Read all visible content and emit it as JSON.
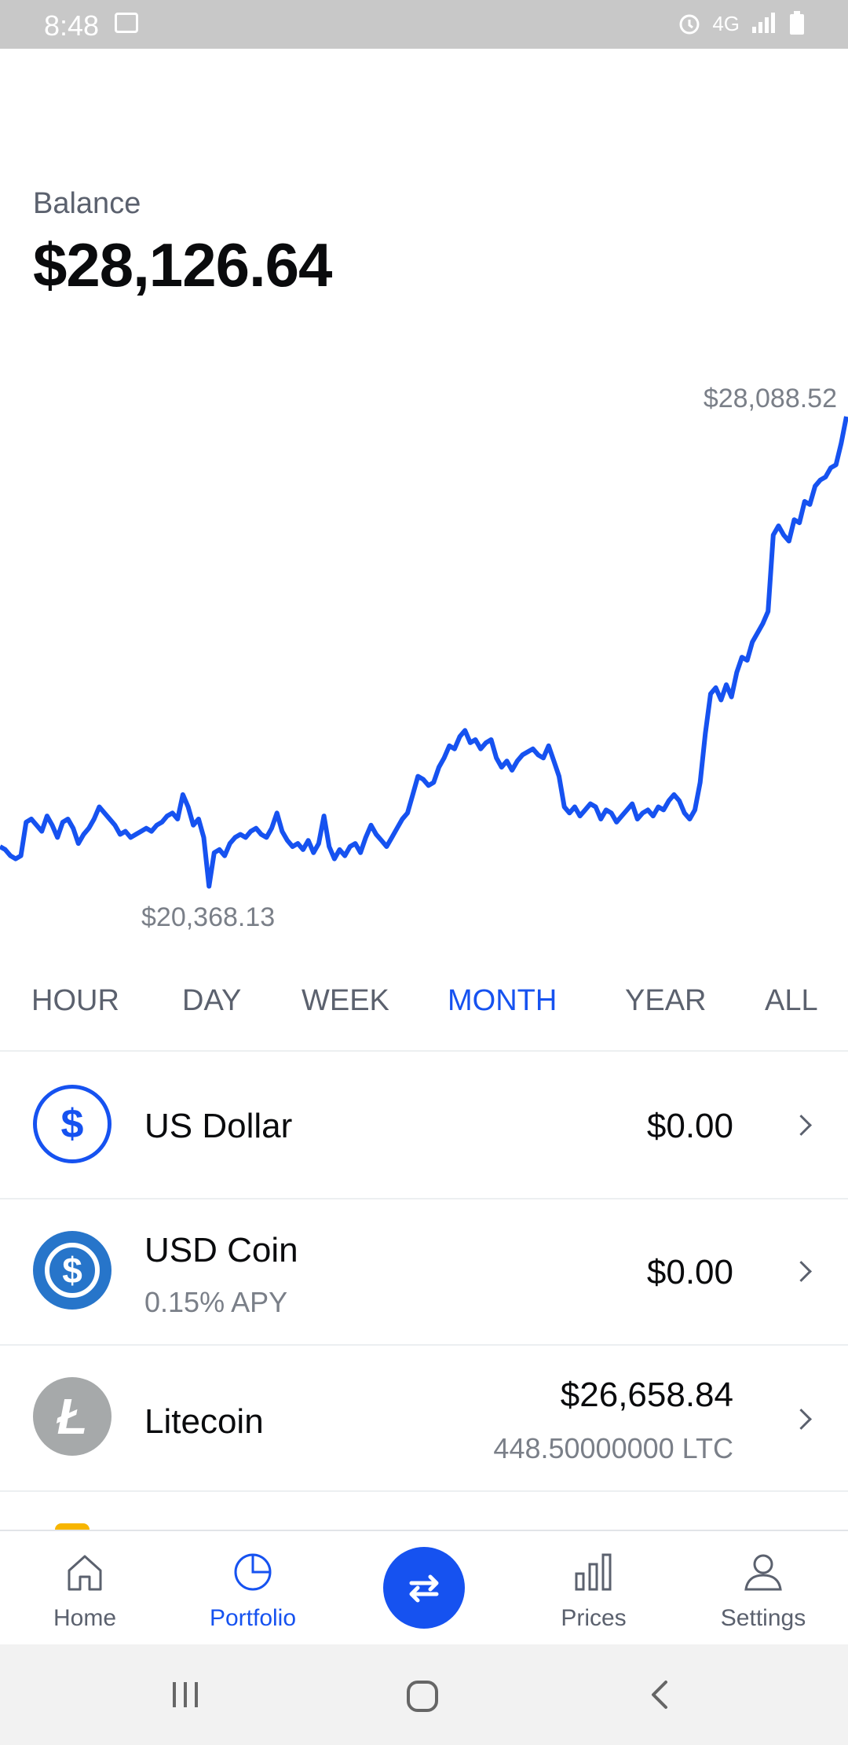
{
  "status_bar": {
    "time": "8:48",
    "right_text": "4G"
  },
  "balance": {
    "label": "Balance",
    "value": "$28,126.64"
  },
  "chart_data": {
    "type": "line",
    "color": "#1652f0",
    "title": "",
    "max_label": "$28,088.52",
    "min_label": "$20,368.13",
    "ylim": [
      20368.13,
      28088.52
    ],
    "values": [
      21050,
      21000,
      20900,
      20850,
      20900,
      21450,
      21500,
      21400,
      21300,
      21550,
      21400,
      21200,
      21450,
      21500,
      21350,
      21100,
      21250,
      21350,
      21500,
      21700,
      21600,
      21500,
      21400,
      21250,
      21300,
      21200,
      21250,
      21300,
      21350,
      21300,
      21400,
      21450,
      21550,
      21600,
      21500,
      21900,
      21700,
      21400,
      21500,
      21200,
      20400,
      20950,
      21000,
      20900,
      21100,
      21200,
      21250,
      21200,
      21300,
      21350,
      21250,
      21200,
      21350,
      21600,
      21300,
      21150,
      21050,
      21100,
      21000,
      21150,
      20950,
      21100,
      21550,
      21050,
      20850,
      21000,
      20900,
      21050,
      21100,
      20950,
      21200,
      21400,
      21250,
      21150,
      21050,
      21200,
      21350,
      21500,
      21600,
      21900,
      22200,
      22150,
      22050,
      22100,
      22350,
      22500,
      22700,
      22650,
      22850,
      22950,
      22750,
      22800,
      22650,
      22750,
      22800,
      22500,
      22350,
      22450,
      22300,
      22450,
      22550,
      22600,
      22650,
      22550,
      22500,
      22700,
      22450,
      22200,
      21700,
      21600,
      21700,
      21550,
      21650,
      21750,
      21700,
      21500,
      21650,
      21600,
      21450,
      21550,
      21650,
      21750,
      21500,
      21600,
      21650,
      21550,
      21700,
      21650,
      21800,
      21900,
      21800,
      21600,
      21500,
      21650,
      22100,
      22900,
      23550,
      23650,
      23450,
      23700,
      23500,
      23900,
      24150,
      24100,
      24400,
      24550,
      24700,
      24900,
      26150,
      26300,
      26150,
      26050,
      26400,
      26350,
      26700,
      26650,
      26950,
      27050,
      27100,
      27250,
      27300,
      27650,
      28088
    ]
  },
  "tabs": {
    "hour": "HOUR",
    "day": "DAY",
    "week": "WEEK",
    "month": "MONTH",
    "year": "YEAR",
    "all": "ALL",
    "active": "MONTH",
    "active_color": "#1652f0"
  },
  "assets": [
    {
      "name": "US Dollar",
      "sub": "",
      "value": "$0.00",
      "amount": "",
      "icon": "dollar-icon",
      "symbol": "$",
      "color": "#1652f0"
    },
    {
      "name": "USD Coin",
      "sub": "0.15% APY",
      "value": "$0.00",
      "amount": "",
      "icon": "usdc-icon",
      "symbol": "$",
      "color": "#2775ca"
    },
    {
      "name": "Litecoin",
      "sub": "",
      "value": "$26,658.84",
      "amount": "448.50000000 LTC",
      "icon": "litecoin-icon",
      "symbol": "Ł",
      "color": "#a6a9aa"
    }
  ],
  "bottom_nav": {
    "home": "Home",
    "portfolio": "Portfolio",
    "prices": "Prices",
    "settings": "Settings",
    "active": "Portfolio"
  }
}
